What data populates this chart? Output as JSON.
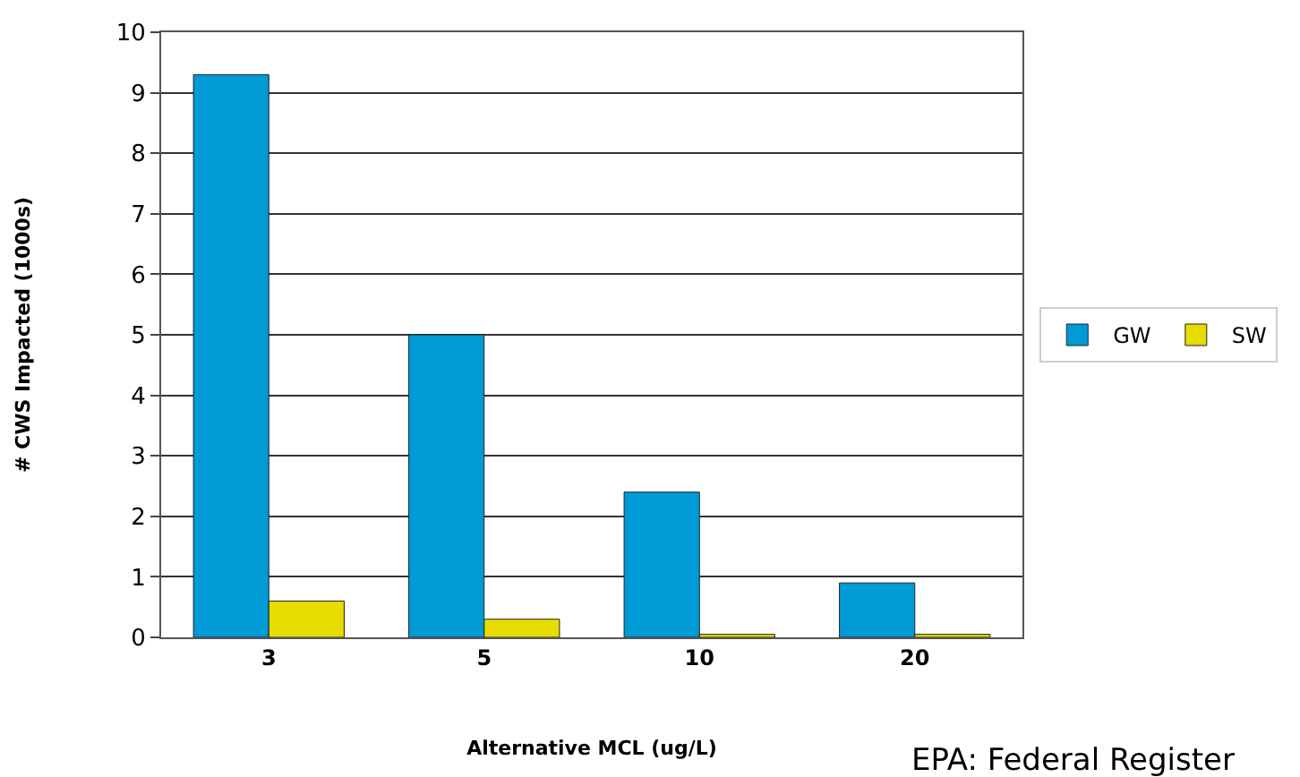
{
  "chart_data": {
    "type": "bar",
    "xlabel": "Alternative MCL (ug/L)",
    "ylabel": "# CWS Impacted (1000s)",
    "categories": [
      "3",
      "5",
      "10",
      "20"
    ],
    "series": [
      {
        "name": "GW",
        "color": "#009ad6",
        "values": [
          9.3,
          5.0,
          2.4,
          0.9
        ]
      },
      {
        "name": "SW",
        "color": "#e6dc00",
        "values": [
          0.6,
          0.3,
          0.05,
          0.05
        ]
      }
    ],
    "ylim": [
      0,
      10
    ],
    "yticks": [
      0,
      1,
      2,
      3,
      4,
      5,
      6,
      7,
      8,
      9,
      10
    ],
    "grid": "y",
    "legend": "right",
    "annotations": [
      "EPA: Federal Register"
    ]
  }
}
